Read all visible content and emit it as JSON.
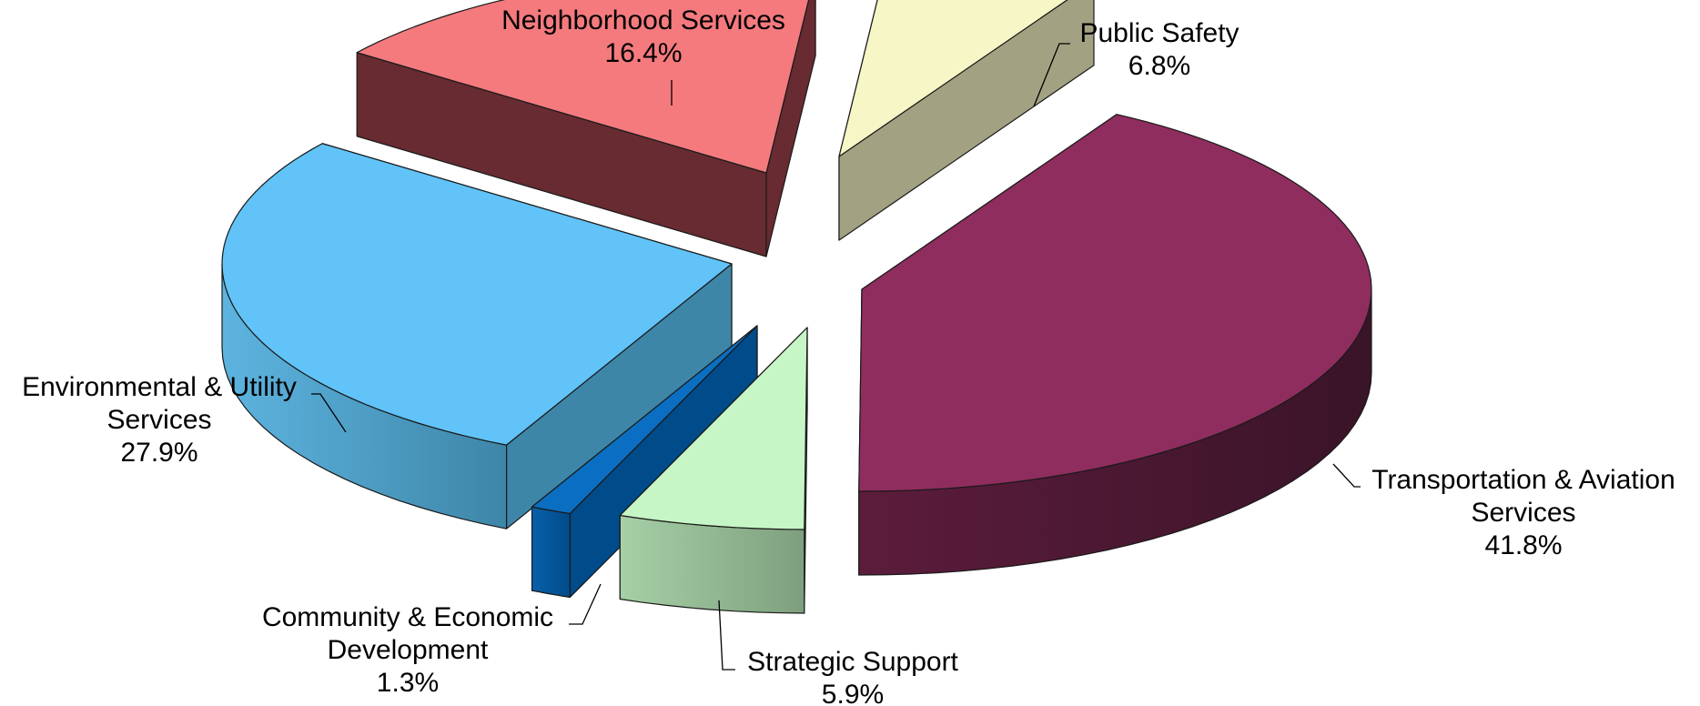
{
  "chart_data": {
    "type": "pie",
    "three_d": true,
    "exploded": true,
    "title": "",
    "slices": [
      {
        "name": "Transportation & Aviation Services",
        "label_lines": [
          "Transportation & Aviation",
          "Services"
        ],
        "percent_label": "41.8%",
        "value": 41.8,
        "color": "#8F2D5E",
        "side_dark": "#3A1428",
        "side_light": "#5C1C3C"
      },
      {
        "name": "Strategic Support",
        "label_lines": [
          "Strategic Support"
        ],
        "percent_label": "5.9%",
        "value": 5.9,
        "color": "#C6F6C6",
        "side_dark": "#7E9F7E",
        "side_light": "#A6D0A6"
      },
      {
        "name": "Community & Economic Development",
        "label_lines": [
          "Community & Economic",
          "Development"
        ],
        "percent_label": "1.3%",
        "value": 1.3,
        "color": "#0A6FC2",
        "side_dark": "#004B8A",
        "side_light": "#0960A8"
      },
      {
        "name": "Environmental & Utility Services",
        "label_lines": [
          "Environmental & Utility",
          "Services"
        ],
        "percent_label": "27.9%",
        "value": 27.9,
        "color": "#61C3F7",
        "side_dark": "#3E86A8",
        "side_light": "#5DB4E0"
      },
      {
        "name": "Neighborhood Services",
        "label_lines": [
          "Neighborhood Services"
        ],
        "percent_label": "16.4%",
        "value": 16.4,
        "color": "#F47A7E",
        "side_dark": "#672B31",
        "side_light": "#C45E61"
      },
      {
        "name": "Public Safety",
        "label_lines": [
          "Public Safety"
        ],
        "percent_label": "6.8%",
        "value": 6.8,
        "color": "#F6F6C6",
        "side_dark": "#A2A283",
        "side_light": "#C8C8A2"
      }
    ]
  }
}
